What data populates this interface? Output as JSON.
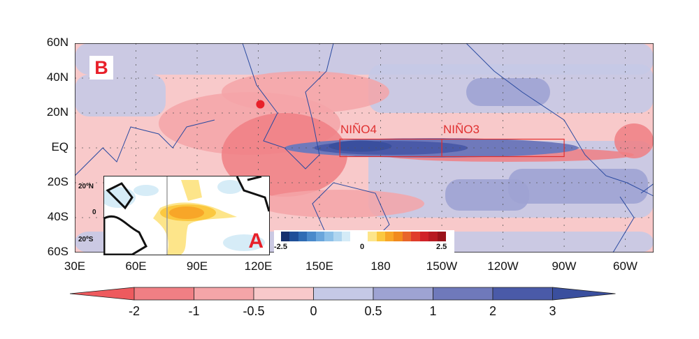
{
  "figure": {
    "panel_b_label": "B",
    "panel_a_label": "A",
    "lat_labels": [
      "60N",
      "40N",
      "20N",
      "EQ",
      "20S",
      "40S",
      "60S"
    ],
    "lon_labels": [
      "30E",
      "60E",
      "90E",
      "120E",
      "150E",
      "180",
      "150W",
      "120W",
      "90W",
      "60W"
    ],
    "regions": [
      {
        "name": "NIÑO4",
        "lon_range": [
          160,
          210
        ],
        "lat_range": [
          -5,
          5
        ]
      },
      {
        "name": "NIÑO3",
        "lon_range": [
          210,
          270
        ],
        "lat_range": [
          -5,
          5
        ]
      }
    ],
    "marker": {
      "lon": 121,
      "lat": 25,
      "color": "#e8202a"
    },
    "colorbar": {
      "ticks": [
        "-2",
        "-1",
        "-0.5",
        "0",
        "0.5",
        "1",
        "2",
        "3"
      ],
      "colors": [
        "#ee5a5e",
        "#f07f84",
        "#f4a5a8",
        "#f8c9ca",
        "#c5c9e6",
        "#9ea3d3",
        "#6f79bb",
        "#4a5aa8",
        "#3a4f9e"
      ]
    },
    "inset": {
      "lat_labels": [
        "20ºN",
        "0",
        "20ºS"
      ],
      "colorbar_labels": [
        "-2.5",
        "0",
        "2.5"
      ],
      "colorbar_colors": [
        "#14306e",
        "#1f4f98",
        "#2f6cb4",
        "#4a8acb",
        "#6aa6dc",
        "#8cc0e8",
        "#b0d6f0",
        "#d4ebf7",
        "#ffffff",
        "#ffffff",
        "#fde58a",
        "#fbc840",
        "#f8a628",
        "#f18a1e",
        "#e8652a",
        "#e03c2a",
        "#d02228",
        "#b81a22",
        "#9a121a"
      ]
    }
  }
}
